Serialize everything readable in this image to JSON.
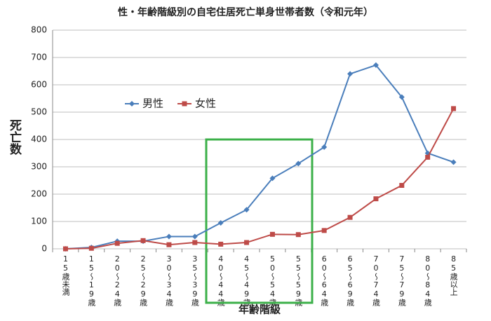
{
  "chart_data": {
    "type": "line",
    "title": "性・年齢階級別の自宅住居死亡単身世帯者数（令和元年）",
    "y_label": "死亡数",
    "x_label": "年齢階級",
    "categories": [
      "15歳未満",
      "15〜19歳",
      "20〜24歳",
      "25〜29歳",
      "30〜34歳",
      "35〜39歳",
      "40〜44歳",
      "45〜49歳",
      "50〜54歳",
      "55〜59歳",
      "60〜64歳",
      "65〜69歳",
      "70〜74歳",
      "75〜79歳",
      "80〜84歳",
      "85歳以上"
    ],
    "series": [
      {
        "name": "男性",
        "color": "#4a7ebb",
        "marker": "diamond",
        "values": [
          0,
          5,
          28,
          28,
          45,
          45,
          95,
          143,
          258,
          312,
          372,
          640,
          672,
          555,
          350,
          317
        ]
      },
      {
        "name": "女性",
        "color": "#be4b48",
        "marker": "square",
        "values": [
          0,
          2,
          20,
          30,
          15,
          23,
          17,
          23,
          53,
          52,
          67,
          115,
          183,
          232,
          335,
          513
        ]
      }
    ],
    "ylim": [
      0,
      800
    ],
    "yticks": [
      0,
      100,
      200,
      300,
      400,
      500,
      600,
      700,
      800
    ],
    "grid": true
  }
}
